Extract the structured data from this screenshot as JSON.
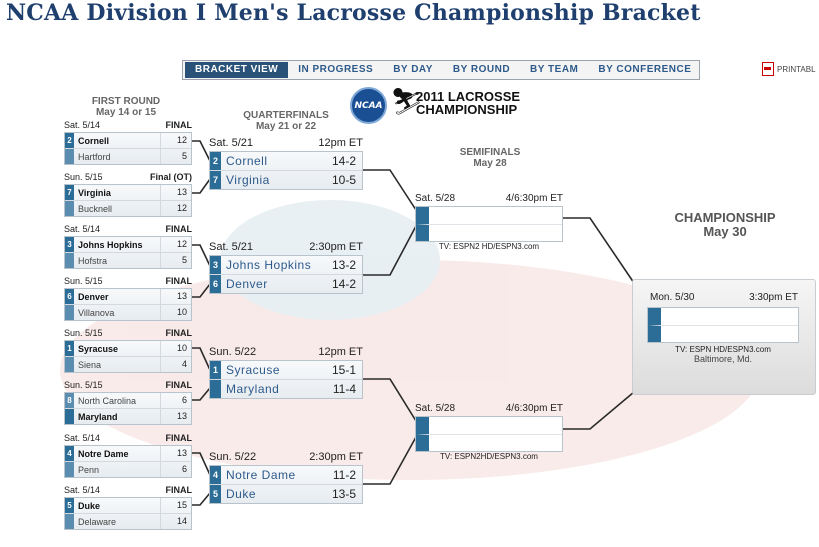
{
  "title": "NCAA Division I Men's Lacrosse Championship Bracket",
  "nav": {
    "items": [
      "BRACKET VIEW",
      "IN PROGRESS",
      "BY DAY",
      "BY ROUND",
      "BY TEAM",
      "BY CONFERENCE"
    ],
    "printable": "PRINTABL"
  },
  "logo": {
    "ncaa": "NCAA",
    "line1": "2011 LACROSSE",
    "line2": "CHAMPIONSHIP"
  },
  "rounds": {
    "first": {
      "name": "FIRST ROUND",
      "dates": "May 14 or 15"
    },
    "quarter": {
      "name": "QUARTERFINALS",
      "dates": "May 21 or 22"
    },
    "semi": {
      "name": "SEMIFINALS",
      "dates": "May 28"
    },
    "champ": {
      "name": "CHAMPIONSHIP",
      "dates": "May 30"
    }
  },
  "first_round": [
    {
      "date": "Sat. 5/14",
      "status": "FINAL",
      "t1": {
        "seed": "2",
        "name": "Cornell",
        "score": "12"
      },
      "t2": {
        "seed": "",
        "name": "Hartford",
        "score": "5"
      }
    },
    {
      "date": "Sun. 5/15",
      "status": "Final (OT)",
      "t1": {
        "seed": "7",
        "name": "Virginia",
        "score": "13"
      },
      "t2": {
        "seed": "",
        "name": "Bucknell",
        "score": "12"
      }
    },
    {
      "date": "Sat. 5/14",
      "status": "FINAL",
      "t1": {
        "seed": "3",
        "name": "Johns Hopkins",
        "score": "12"
      },
      "t2": {
        "seed": "",
        "name": "Hofstra",
        "score": "5"
      }
    },
    {
      "date": "Sun. 5/15",
      "status": "FINAL",
      "t1": {
        "seed": "6",
        "name": "Denver",
        "score": "13"
      },
      "t2": {
        "seed": "",
        "name": "Villanova",
        "score": "10"
      }
    },
    {
      "date": "Sun. 5/15",
      "status": "FINAL",
      "t1": {
        "seed": "1",
        "name": "Syracuse",
        "score": "10"
      },
      "t2": {
        "seed": "",
        "name": "Siena",
        "score": "4"
      }
    },
    {
      "date": "Sun. 5/15",
      "status": "FINAL",
      "t1": {
        "seed": "8",
        "name": "North Carolina",
        "score": "6"
      },
      "t2": {
        "seed": "",
        "name": "Maryland",
        "score": "13"
      }
    },
    {
      "date": "Sat. 5/14",
      "status": "FINAL",
      "t1": {
        "seed": "4",
        "name": "Notre Dame",
        "score": "13"
      },
      "t2": {
        "seed": "",
        "name": "Penn",
        "score": "6"
      }
    },
    {
      "date": "Sat. 5/14",
      "status": "FINAL",
      "t1": {
        "seed": "5",
        "name": "Duke",
        "score": "15"
      },
      "t2": {
        "seed": "",
        "name": "Delaware",
        "score": "14"
      }
    }
  ],
  "quarterfinals": [
    {
      "date": "Sat. 5/21",
      "time": "12pm ET",
      "t1": {
        "seed": "2",
        "name": "Cornell",
        "record": "14-2"
      },
      "t2": {
        "seed": "7",
        "name": "Virginia",
        "record": "10-5"
      }
    },
    {
      "date": "Sat. 5/21",
      "time": "2:30pm ET",
      "t1": {
        "seed": "3",
        "name": "Johns Hopkins",
        "record": "13-2"
      },
      "t2": {
        "seed": "6",
        "name": "Denver",
        "record": "14-2"
      }
    },
    {
      "date": "Sun. 5/22",
      "time": "12pm ET",
      "t1": {
        "seed": "1",
        "name": "Syracuse",
        "record": "15-1"
      },
      "t2": {
        "seed": "",
        "name": "Maryland",
        "record": "11-4"
      }
    },
    {
      "date": "Sun. 5/22",
      "time": "2:30pm ET",
      "t1": {
        "seed": "4",
        "name": "Notre Dame",
        "record": "11-2"
      },
      "t2": {
        "seed": "5",
        "name": "Duke",
        "record": "13-5"
      }
    }
  ],
  "semifinals": [
    {
      "date": "Sat. 5/28",
      "time": "4/6:30pm ET",
      "tv": "TV: ESPN2 HD/ESPN3.com"
    },
    {
      "date": "Sat. 5/28",
      "time": "4/6:30pm ET",
      "tv": "TV: ESPN2HD/ESPN3.com"
    }
  ],
  "championship": {
    "date": "Mon. 5/30",
    "time": "3:30pm ET",
    "tv": "TV: ESPN HD/ESPN3.com",
    "location": "Baltimore, Md."
  },
  "colors": {
    "title": "#1f3f6e",
    "seed": "#2b6d96",
    "nav_active": "#2a5279"
  }
}
